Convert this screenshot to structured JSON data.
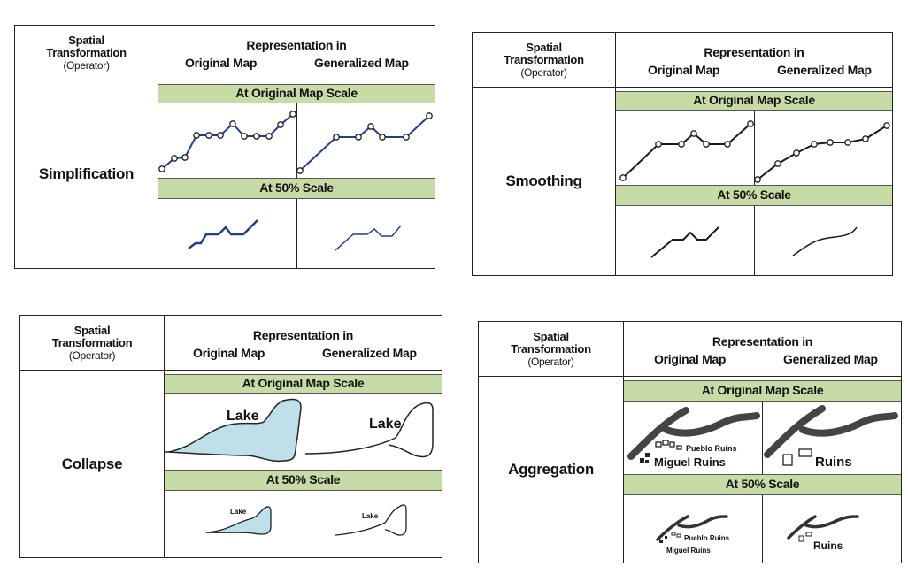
{
  "common": {
    "spatial": "Spatial",
    "transformation": "Transformation",
    "operator": "(Operator)",
    "representation": "Representation in",
    "original_map": "Original Map",
    "generalized_map": "Generalized Map",
    "band_original": "At Original Map Scale",
    "band_50": "At 50% Scale"
  },
  "panels": {
    "simplification": {
      "operator": "Simplification",
      "line_color": "#1f3f8f"
    },
    "smoothing": {
      "operator": "Smoothing",
      "line_color": "#1a1a1a"
    },
    "collapse": {
      "operator": "Collapse",
      "lake": "Lake",
      "lake_fill": "#bfe0ea"
    },
    "aggregation": {
      "operator": "Aggregation",
      "pueblo_ruins": "Pueblo Ruins",
      "miguel_ruins": "Miguel Ruins",
      "ruins": "Ruins"
    }
  }
}
